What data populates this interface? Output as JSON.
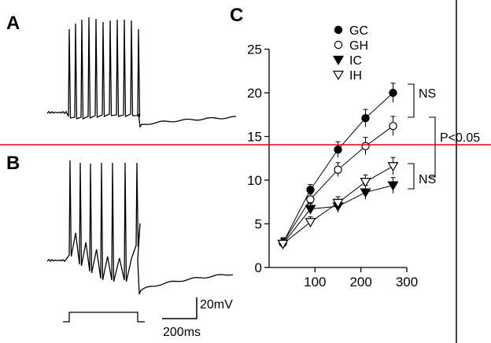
{
  "panels": {
    "a": "A",
    "b": "B",
    "c": "C"
  },
  "scale_bar": {
    "voltage": "20mV",
    "time": "200ms"
  },
  "chart_data": {
    "type": "line",
    "title": "",
    "xlabel": "",
    "ylabel": "",
    "xlim": [
      0,
      300
    ],
    "ylim": [
      0,
      25
    ],
    "xticks": [
      100,
      200,
      300
    ],
    "yticks": [
      0,
      5,
      10,
      15,
      20,
      25
    ],
    "x": [
      30,
      90,
      150,
      210,
      270
    ],
    "series": [
      {
        "name": "GC",
        "marker": "filled-circle",
        "values": [
          2.8,
          8.9,
          13.5,
          17.1,
          20.0
        ],
        "errors": [
          0.6,
          0.6,
          0.9,
          1.0,
          1.1
        ]
      },
      {
        "name": "GH",
        "marker": "open-circle",
        "values": [
          2.8,
          7.8,
          11.2,
          13.9,
          16.2
        ],
        "errors": [
          0.6,
          0.6,
          0.8,
          1.0,
          1.1
        ]
      },
      {
        "name": "IC",
        "marker": "filled-triangle-down",
        "values": [
          2.7,
          6.7,
          7.0,
          8.6,
          9.4
        ],
        "errors": [
          0.6,
          0.6,
          0.7,
          0.8,
          0.9
        ]
      },
      {
        "name": "IH",
        "marker": "open-triangle-down",
        "values": [
          2.7,
          5.2,
          7.4,
          9.8,
          11.6
        ],
        "errors": [
          0.6,
          0.6,
          0.7,
          0.8,
          1.0
        ]
      }
    ],
    "annotations": {
      "ns_top": "NS",
      "ns_bottom": "NS",
      "p_value": "P<0.05"
    },
    "reference_line": {
      "y": 14.1,
      "color": "#e8000b"
    }
  }
}
